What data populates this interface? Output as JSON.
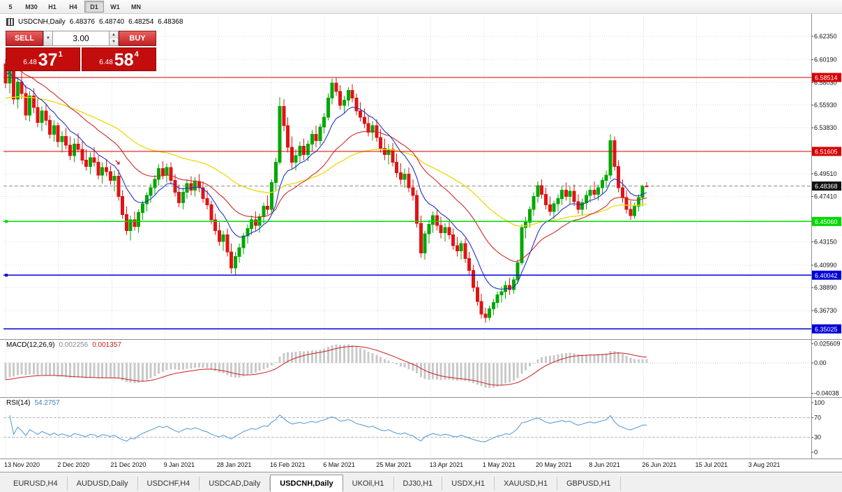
{
  "toolbar": {
    "timeframes": [
      {
        "label": "5",
        "active": false
      },
      {
        "label": "M30",
        "active": false
      },
      {
        "label": "H1",
        "active": false
      },
      {
        "label": "H4",
        "active": false
      },
      {
        "label": "D1",
        "active": true
      },
      {
        "label": "W1",
        "active": false
      },
      {
        "label": "MN",
        "active": false
      }
    ]
  },
  "chart_header": {
    "symbol": "USDCNH,Daily",
    "open": "6.48376",
    "high": "6.48740",
    "low": "6.48254",
    "close": "6.48368"
  },
  "trade_panel": {
    "sell_label": "SELL",
    "buy_label": "BUY",
    "lot_size": "3.00",
    "sell_price": {
      "base": "6.48",
      "pips": "37",
      "pip_fraction": "1"
    },
    "buy_price": {
      "base": "6.48",
      "pips": "58",
      "pip_fraction": "4"
    }
  },
  "chart_data": {
    "type": "candlestick",
    "symbol": "USDCNH",
    "timeframe": "Daily",
    "x_labels": [
      "13 Nov 2020",
      "2 Dec 2020",
      "21 Dec 2020",
      "9 Jan 2021",
      "28 Jan 2021",
      "16 Feb 2021",
      "6 Mar 2021",
      "25 Mar 2021",
      "13 Apr 2021",
      "1 May 2021",
      "20 May 2021",
      "8 Jun 2021",
      "26 Jun 2021",
      "15 Jul 2021",
      "3 Aug 2021"
    ],
    "y_axis_labels": [
      {
        "v": 6.6235,
        "label": "6.62350"
      },
      {
        "v": 6.6019,
        "label": "6.60190"
      },
      {
        "v": 6.5803,
        "label": "6.58030"
      },
      {
        "v": 6.5593,
        "label": "6.55930"
      },
      {
        "v": 6.5383,
        "label": "6.53830"
      },
      {
        "v": 6.4951,
        "label": "6.49510"
      },
      {
        "v": 6.4741,
        "label": "6.47410"
      },
      {
        "v": 6.4315,
        "label": "6.43150"
      },
      {
        "v": 6.4099,
        "label": "6.40990"
      },
      {
        "v": 6.3889,
        "label": "6.38890"
      },
      {
        "v": 6.3673,
        "label": "6.36730"
      }
    ],
    "grid_prices": [
      6.6235,
      6.6019,
      6.5803,
      6.5593,
      6.5383,
      6.5173,
      6.4951,
      6.4741,
      6.4525,
      6.4315,
      6.4099,
      6.3889,
      6.3673
    ],
    "levels": [
      {
        "v": 6.58514,
        "label": "6.58514",
        "color": "#d60000",
        "width": 1.2,
        "handle": false
      },
      {
        "v": 6.51605,
        "label": "6.51605",
        "color": "#d60000",
        "width": 1.2,
        "handle": false
      },
      {
        "v": 6.4506,
        "label": "6.45060",
        "color": "#00d800",
        "width": 1.6,
        "handle": true
      },
      {
        "v": 6.40042,
        "label": "6.40042",
        "color": "#0000d8",
        "width": 1.6,
        "handle": true
      },
      {
        "v": 6.35025,
        "label": "6.35025",
        "color": "#0000d8",
        "width": 1.6,
        "handle": false
      }
    ],
    "current_price": {
      "v": 6.48368,
      "label": "6.48368",
      "box_color": "#111111"
    },
    "indicators": {
      "macd": {
        "label": "MACD(12,26,9)",
        "value_main": "0.002256",
        "value_signal": "0.001357",
        "axis_labels": [
          {
            "v": 0.025609,
            "label": "0.025609"
          },
          {
            "v": 0,
            "label": "0.00"
          },
          {
            "v": -0.04038,
            "label": "-0.04038"
          }
        ]
      },
      "rsi": {
        "label": "RSI(14)",
        "value": "54.2757",
        "bands": [
          70,
          30
        ],
        "axis_labels": [
          {
            "v": 100,
            "label": "100"
          },
          {
            "v": 70,
            "label": "70"
          },
          {
            "v": 30,
            "label": "30"
          },
          {
            "v": 0,
            "label": "0"
          }
        ]
      }
    },
    "annotations": [
      {
        "type": "sell-arrow",
        "index": 28,
        "price": 6.505,
        "color": "#d00000"
      }
    ],
    "colors": {
      "bull": "#00a800",
      "bear": "#e01414",
      "ma_fast": "#2433c4",
      "ma_mid": "#d02828",
      "ma_slow": "#efda16",
      "macd_hist": "#c9c9c9",
      "macd_signal": "#cc2020",
      "rsi": "#4e94d6"
    },
    "candles": [
      [
        6.598,
        6.602,
        6.575,
        6.58
      ],
      [
        6.58,
        6.599,
        6.57,
        6.595
      ],
      [
        6.595,
        6.6,
        6.56,
        6.565
      ],
      [
        6.565,
        6.585,
        6.556,
        6.581
      ],
      [
        6.581,
        6.59,
        6.565,
        6.57
      ],
      [
        6.57,
        6.578,
        6.545,
        6.55
      ],
      [
        6.55,
        6.572,
        6.544,
        6.568
      ],
      [
        6.568,
        6.575,
        6.552,
        6.557
      ],
      [
        6.557,
        6.565,
        6.539,
        6.543
      ],
      [
        6.543,
        6.558,
        6.535,
        6.554
      ],
      [
        6.554,
        6.56,
        6.54,
        6.545
      ],
      [
        6.545,
        6.55,
        6.528,
        6.532
      ],
      [
        6.532,
        6.545,
        6.525,
        6.54
      ],
      [
        6.54,
        6.543,
        6.52,
        6.525
      ],
      [
        6.525,
        6.535,
        6.515,
        6.53
      ],
      [
        6.53,
        6.538,
        6.518,
        6.522
      ],
      [
        6.522,
        6.53,
        6.508,
        6.512
      ],
      [
        6.512,
        6.528,
        6.506,
        6.523
      ],
      [
        6.523,
        6.533,
        6.515,
        6.518
      ],
      [
        6.518,
        6.526,
        6.504,
        6.508
      ],
      [
        6.508,
        6.518,
        6.498,
        6.502
      ],
      [
        6.502,
        6.515,
        6.495,
        6.51
      ],
      [
        6.51,
        6.52,
        6.502,
        6.506
      ],
      [
        6.506,
        6.512,
        6.49,
        6.494
      ],
      [
        6.494,
        6.506,
        6.486,
        6.501
      ],
      [
        6.501,
        6.509,
        6.493,
        6.497
      ],
      [
        6.497,
        6.503,
        6.485,
        6.489
      ],
      [
        6.489,
        6.498,
        6.479,
        6.493
      ],
      [
        6.493,
        6.499,
        6.47,
        6.474
      ],
      [
        6.474,
        6.48,
        6.453,
        6.457
      ],
      [
        6.457,
        6.465,
        6.438,
        6.442
      ],
      [
        6.442,
        6.456,
        6.433,
        6.452
      ],
      [
        6.452,
        6.46,
        6.442,
        6.446
      ],
      [
        6.446,
        6.462,
        6.44,
        6.459
      ],
      [
        6.459,
        6.47,
        6.452,
        6.467
      ],
      [
        6.467,
        6.478,
        6.46,
        6.475
      ],
      [
        6.475,
        6.486,
        6.468,
        6.482
      ],
      [
        6.482,
        6.494,
        6.476,
        6.49
      ],
      [
        6.49,
        6.504,
        6.484,
        6.5
      ],
      [
        6.5,
        6.507,
        6.49,
        6.494
      ],
      [
        6.494,
        6.505,
        6.487,
        6.501
      ],
      [
        6.501,
        6.506,
        6.485,
        6.489
      ],
      [
        6.489,
        6.495,
        6.474,
        6.478
      ],
      [
        6.478,
        6.485,
        6.464,
        6.468
      ],
      [
        6.468,
        6.482,
        6.462,
        6.478
      ],
      [
        6.478,
        6.49,
        6.472,
        6.486
      ],
      [
        6.486,
        6.493,
        6.475,
        6.48
      ],
      [
        6.48,
        6.492,
        6.474,
        6.488
      ],
      [
        6.488,
        6.495,
        6.478,
        6.482
      ],
      [
        6.482,
        6.488,
        6.468,
        6.472
      ],
      [
        6.472,
        6.48,
        6.462,
        6.466
      ],
      [
        6.466,
        6.47,
        6.448,
        6.452
      ],
      [
        6.452,
        6.458,
        6.438,
        6.442
      ],
      [
        6.442,
        6.45,
        6.428,
        6.432
      ],
      [
        6.432,
        6.442,
        6.423,
        6.438
      ],
      [
        6.438,
        6.444,
        6.418,
        6.422
      ],
      [
        6.422,
        6.43,
        6.402,
        6.407
      ],
      [
        6.407,
        6.422,
        6.401,
        6.418
      ],
      [
        6.418,
        6.43,
        6.412,
        6.426
      ],
      [
        6.426,
        6.44,
        6.42,
        6.437
      ],
      [
        6.437,
        6.448,
        6.43,
        6.444
      ],
      [
        6.444,
        6.456,
        6.438,
        6.452
      ],
      [
        6.452,
        6.46,
        6.442,
        6.447
      ],
      [
        6.447,
        6.458,
        6.44,
        6.455
      ],
      [
        6.455,
        6.468,
        6.449,
        6.465
      ],
      [
        6.465,
        6.475,
        6.457,
        6.462
      ],
      [
        6.462,
        6.49,
        6.458,
        6.487
      ],
      [
        6.487,
        6.51,
        6.48,
        6.506
      ],
      [
        6.506,
        6.567,
        6.504,
        6.558
      ],
      [
        6.558,
        6.565,
        6.535,
        6.54
      ],
      [
        6.54,
        6.548,
        6.515,
        6.52
      ],
      [
        6.52,
        6.53,
        6.5,
        6.506
      ],
      [
        6.506,
        6.518,
        6.498,
        6.512
      ],
      [
        6.512,
        6.525,
        6.506,
        6.521
      ],
      [
        6.521,
        6.528,
        6.508,
        6.513
      ],
      [
        6.513,
        6.526,
        6.507,
        6.523
      ],
      [
        6.523,
        6.536,
        6.516,
        6.532
      ],
      [
        6.532,
        6.54,
        6.52,
        6.526
      ],
      [
        6.526,
        6.542,
        6.522,
        6.539
      ],
      [
        6.539,
        6.552,
        6.533,
        6.548
      ],
      [
        6.548,
        6.57,
        6.545,
        6.566
      ],
      [
        6.566,
        6.584,
        6.56,
        6.58
      ],
      [
        6.58,
        6.5855,
        6.568,
        6.572
      ],
      [
        6.572,
        6.578,
        6.555,
        6.559
      ],
      [
        6.559,
        6.568,
        6.552,
        6.564
      ],
      [
        6.564,
        6.576,
        6.558,
        6.573
      ],
      [
        6.573,
        6.579,
        6.562,
        6.566
      ],
      [
        6.566,
        6.57,
        6.55,
        6.554
      ],
      [
        6.554,
        6.562,
        6.544,
        6.548
      ],
      [
        6.548,
        6.556,
        6.538,
        6.542
      ],
      [
        6.542,
        6.55,
        6.53,
        6.534
      ],
      [
        6.534,
        6.544,
        6.526,
        6.54
      ],
      [
        6.54,
        6.546,
        6.525,
        6.529
      ],
      [
        6.529,
        6.537,
        6.515,
        6.519
      ],
      [
        6.519,
        6.528,
        6.508,
        6.513
      ],
      [
        6.513,
        6.523,
        6.504,
        6.518
      ],
      [
        6.518,
        6.524,
        6.502,
        6.506
      ],
      [
        6.506,
        6.514,
        6.492,
        6.496
      ],
      [
        6.496,
        6.505,
        6.485,
        6.49
      ],
      [
        6.49,
        6.5,
        6.482,
        6.495
      ],
      [
        6.495,
        6.501,
        6.478,
        6.482
      ],
      [
        6.482,
        6.49,
        6.47,
        6.475
      ],
      [
        6.475,
        6.48,
        6.445,
        6.449
      ],
      [
        6.449,
        6.456,
        6.417,
        6.421
      ],
      [
        6.421,
        6.442,
        6.415,
        6.439
      ],
      [
        6.439,
        6.452,
        6.43,
        6.448
      ],
      [
        6.448,
        6.46,
        6.44,
        6.456
      ],
      [
        6.456,
        6.462,
        6.442,
        6.447
      ],
      [
        6.447,
        6.455,
        6.435,
        6.44
      ],
      [
        6.44,
        6.449,
        6.432,
        6.445
      ],
      [
        6.445,
        6.451,
        6.434,
        6.438
      ],
      [
        6.438,
        6.444,
        6.424,
        6.428
      ],
      [
        6.428,
        6.436,
        6.418,
        6.423
      ],
      [
        6.423,
        6.433,
        6.415,
        6.43
      ],
      [
        6.43,
        6.435,
        6.412,
        6.416
      ],
      [
        6.416,
        6.422,
        6.4,
        6.405
      ],
      [
        6.405,
        6.41,
        6.385,
        6.389
      ],
      [
        6.389,
        6.395,
        6.372,
        6.376
      ],
      [
        6.376,
        6.383,
        6.36,
        6.364
      ],
      [
        6.364,
        6.37,
        6.356,
        6.361
      ],
      [
        6.361,
        6.372,
        6.358,
        6.369
      ],
      [
        6.369,
        6.378,
        6.363,
        6.375
      ],
      [
        6.375,
        6.385,
        6.37,
        6.382
      ],
      [
        6.382,
        6.39,
        6.375,
        6.385
      ],
      [
        6.385,
        6.395,
        6.378,
        6.391
      ],
      [
        6.391,
        6.398,
        6.382,
        6.387
      ],
      [
        6.387,
        6.399,
        6.383,
        6.396
      ],
      [
        6.396,
        6.415,
        6.392,
        6.412
      ],
      [
        6.412,
        6.448,
        6.41,
        6.445
      ],
      [
        6.445,
        6.455,
        6.435,
        6.45
      ],
      [
        6.45,
        6.465,
        6.445,
        6.462
      ],
      [
        6.462,
        6.478,
        6.456,
        6.474
      ],
      [
        6.474,
        6.488,
        6.468,
        6.484
      ],
      [
        6.484,
        6.49,
        6.472,
        6.476
      ],
      [
        6.476,
        6.482,
        6.462,
        6.466
      ],
      [
        6.466,
        6.474,
        6.456,
        6.46
      ],
      [
        6.46,
        6.47,
        6.453,
        6.467
      ],
      [
        6.467,
        6.476,
        6.46,
        6.472
      ],
      [
        6.472,
        6.484,
        6.466,
        6.48
      ],
      [
        6.48,
        6.487,
        6.47,
        6.474
      ],
      [
        6.474,
        6.483,
        6.467,
        6.479
      ],
      [
        6.479,
        6.485,
        6.465,
        6.469
      ],
      [
        6.469,
        6.476,
        6.458,
        6.462
      ],
      [
        6.462,
        6.472,
        6.456,
        6.468
      ],
      [
        6.468,
        6.479,
        6.462,
        6.475
      ],
      [
        6.475,
        6.483,
        6.468,
        6.48
      ],
      [
        6.48,
        6.488,
        6.472,
        6.476
      ],
      [
        6.476,
        6.485,
        6.47,
        6.482
      ],
      [
        6.482,
        6.492,
        6.476,
        6.489
      ],
      [
        6.489,
        6.498,
        6.482,
        6.494
      ],
      [
        6.494,
        6.532,
        6.49,
        6.526
      ],
      [
        6.526,
        6.53,
        6.498,
        6.502
      ],
      [
        6.502,
        6.508,
        6.478,
        6.482
      ],
      [
        6.482,
        6.49,
        6.468,
        6.473
      ],
      [
        6.473,
        6.48,
        6.458,
        6.462
      ],
      [
        6.462,
        6.47,
        6.452,
        6.456
      ],
      [
        6.456,
        6.468,
        6.453,
        6.465
      ],
      [
        6.465,
        6.476,
        6.46,
        6.473
      ],
      [
        6.473,
        6.485,
        6.465,
        6.4835
      ],
      [
        6.48376,
        6.4874,
        6.48254,
        6.48368
      ]
    ]
  },
  "tabs": [
    {
      "label": "EURUSD,H4",
      "active": false
    },
    {
      "label": "AUDUSD,Daily",
      "active": false
    },
    {
      "label": "USDCHF,H4",
      "active": false
    },
    {
      "label": "USDCAD,Daily",
      "active": false
    },
    {
      "label": "USDCNH,Daily",
      "active": true
    },
    {
      "label": "UKOil,H1",
      "active": false
    },
    {
      "label": "DJ30,H1",
      "active": false
    },
    {
      "label": "USDX,H1",
      "active": false
    },
    {
      "label": "XAUUSD,H1",
      "active": false
    },
    {
      "label": "GBPUSD,H1",
      "active": false
    }
  ]
}
